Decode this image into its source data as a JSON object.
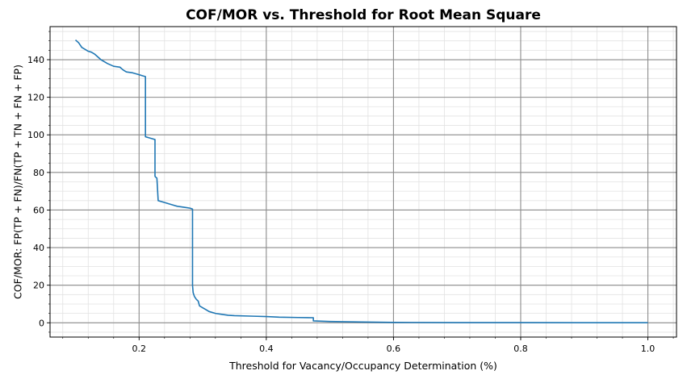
{
  "chart_data": {
    "type": "line",
    "title": "COF/MOR vs. Threshold for Root Mean Square",
    "xlabel": "Threshold for Vacancy/Occupancy Determination (%)",
    "ylabel": "COF/MOR: FP(TP + FN)/FN(TP + TN + FN + FP)",
    "xlim": [
      0.06,
      1.045
    ],
    "ylim": [
      -7.6,
      157.6
    ],
    "xticks": [
      0.2,
      0.4,
      0.6,
      0.8,
      1.0
    ],
    "xtick_labels": [
      "0.2",
      "0.4",
      "0.6",
      "0.8",
      "1.0"
    ],
    "yticks": [
      0,
      20,
      40,
      60,
      80,
      100,
      120,
      140
    ],
    "ytick_labels": [
      "0",
      "20",
      "40",
      "60",
      "80",
      "100",
      "120",
      "140"
    ],
    "grid": {
      "major": true,
      "minor": true
    },
    "legend": "none",
    "series": [
      {
        "color": "#1f77b4",
        "x": [
          0.1,
          0.105,
          0.108,
          0.11,
          0.115,
          0.12,
          0.125,
          0.13,
          0.135,
          0.14,
          0.145,
          0.15,
          0.16,
          0.17,
          0.175,
          0.18,
          0.19,
          0.2,
          0.205,
          0.21,
          0.21,
          0.215,
          0.22,
          0.225,
          0.225,
          0.226,
          0.228,
          0.23,
          0.24,
          0.25,
          0.26,
          0.27,
          0.28,
          0.284,
          0.284,
          0.285,
          0.287,
          0.29,
          0.293,
          0.295,
          0.3,
          0.305,
          0.31,
          0.32,
          0.33,
          0.34,
          0.35,
          0.38,
          0.4,
          0.42,
          0.45,
          0.474,
          0.474,
          0.5,
          0.55,
          0.6,
          0.7,
          0.8,
          0.9,
          1.0
        ],
        "y": [
          150.5,
          149.0,
          147.5,
          146.5,
          145.5,
          144.5,
          144.0,
          143.0,
          141.5,
          140.0,
          139.0,
          138.0,
          136.5,
          136.0,
          134.5,
          133.5,
          133.0,
          132.0,
          131.5,
          131.0,
          99.0,
          98.5,
          98.0,
          97.5,
          78.0,
          77.5,
          77.0,
          65.0,
          64.0,
          63.0,
          62.0,
          61.5,
          61.0,
          60.5,
          20.0,
          16.0,
          14.0,
          12.5,
          11.5,
          9.0,
          8.0,
          7.0,
          6.0,
          5.0,
          4.5,
          4.0,
          3.8,
          3.5,
          3.3,
          3.0,
          2.8,
          2.7,
          1.0,
          0.7,
          0.4,
          0.2,
          0.1,
          0.1,
          0.05,
          0.05
        ]
      }
    ]
  }
}
